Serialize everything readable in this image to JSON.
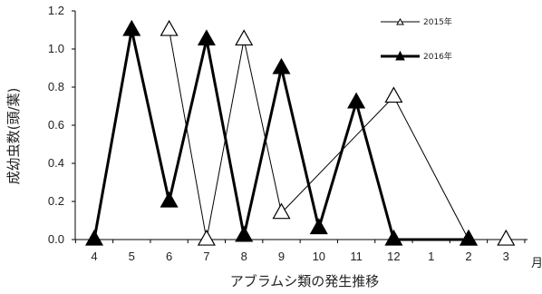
{
  "chart_data": {
    "type": "line",
    "categories": [
      "4",
      "5",
      "6",
      "7",
      "8",
      "9",
      "10",
      "11",
      "12",
      "1",
      "2",
      "3"
    ],
    "xlabel": "アブラムシ類の発生推移",
    "xunit": "月",
    "ylabel": "成幼虫数(頭/葉)",
    "ylim": [
      0,
      1.2
    ],
    "yticks": [
      "0.0",
      "0.2",
      "0.4",
      "0.6",
      "0.8",
      "1.0",
      "1.2"
    ],
    "grid": false,
    "legend_position": "top-right",
    "series": [
      {
        "name": "2015年",
        "style": "thin-open-triangle",
        "color": "#000000",
        "values": [
          null,
          null,
          1.1,
          0.0,
          1.05,
          0.14,
          null,
          null,
          0.75,
          null,
          0.0,
          0.0
        ]
      },
      {
        "name": "2016年",
        "style": "thick-filled-triangle",
        "color": "#000000",
        "values": [
          0.0,
          1.1,
          0.2,
          1.05,
          0.02,
          0.9,
          0.06,
          0.72,
          0.0,
          null,
          0.0,
          null
        ]
      }
    ]
  }
}
